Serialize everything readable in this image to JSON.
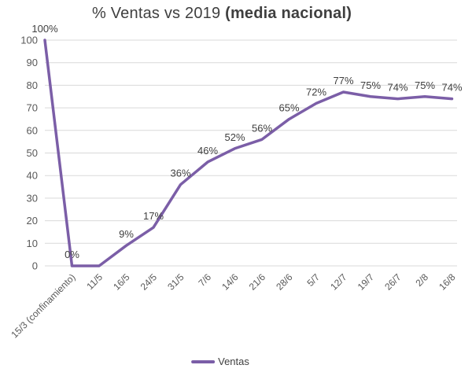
{
  "title": {
    "prefix": "% Ventas vs 2019 ",
    "emphasis": "(media nacional)"
  },
  "legend": {
    "series_label": "Ventas"
  },
  "chart_data": {
    "type": "line",
    "title": "% Ventas vs 2019 (media nacional)",
    "xlabel": "",
    "ylabel": "",
    "ylim": [
      0,
      100
    ],
    "ytick_step": 10,
    "ytick_labels": [
      "0",
      "10",
      "20",
      "30",
      "40",
      "50",
      "60",
      "70",
      "80",
      "90",
      "100"
    ],
    "grid": true,
    "legend_position": "bottom",
    "x_label_rotation_deg": 45,
    "categories": [
      "",
      "15/3 (confinamiento)",
      "11/5",
      "16/5",
      "24/5",
      "31/5",
      "7/6",
      "14/6",
      "21/6",
      "28/6",
      "5/7",
      "12/7",
      "19/7",
      "26/7",
      "2/8",
      "16/8"
    ],
    "series": [
      {
        "name": "Ventas",
        "values": [
          100,
          0,
          0,
          9,
          17,
          36,
          46,
          52,
          56,
          65,
          72,
          77,
          75,
          74,
          75,
          74
        ]
      }
    ],
    "point_labels": [
      "100%",
      "0%",
      "",
      "9%",
      "17%",
      "36%",
      "46%",
      "52%",
      "56%",
      "65%",
      "72%",
      "77%",
      "75%",
      "74%",
      "75%",
      "74%"
    ],
    "colors": {
      "line": "#7b5ea7",
      "grid": "#d9d9d9",
      "title_text": "#3f3f3f",
      "data_label_text": "#404040",
      "axis_text": "#595959",
      "background": "#ffffff"
    }
  }
}
